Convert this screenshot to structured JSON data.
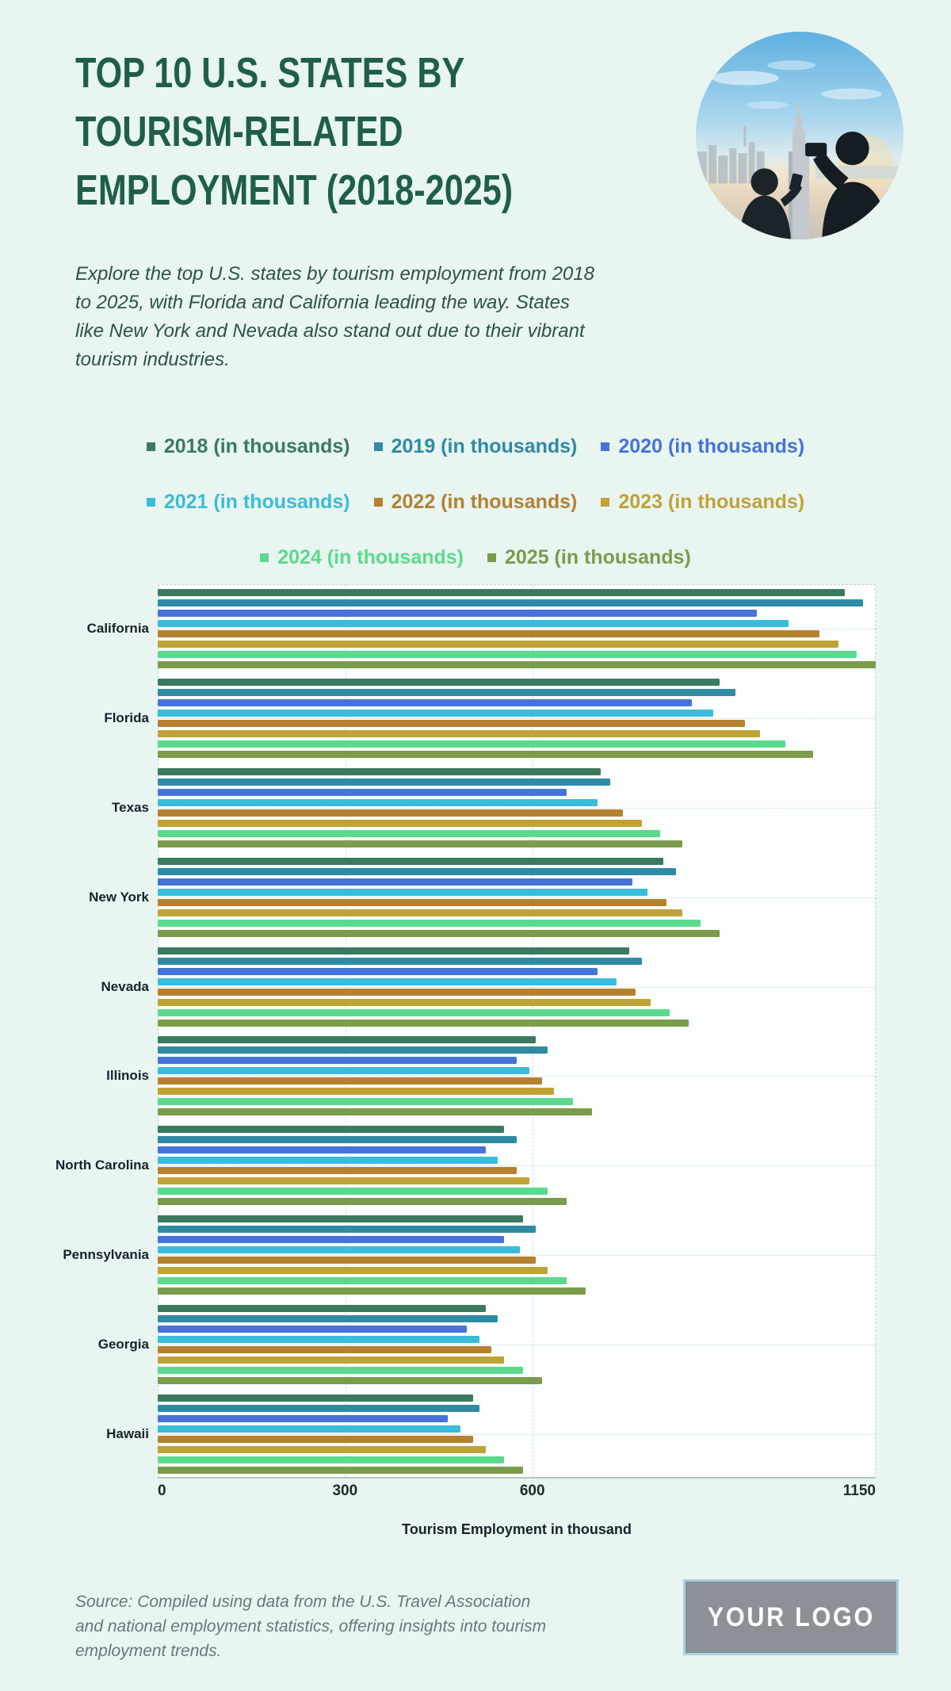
{
  "page": {
    "title_lines": [
      "TOP 10 U.S. STATES BY",
      "TOURISM-RELATED",
      "EMPLOYMENT (2018-2025)"
    ],
    "intro": "Explore the top U.S. states by tourism employment from 2018 to 2025, with Florida and California leading the way. States like New York and Nevada also stand out due to their vibrant tourism industries.",
    "source": "Source: Compiled using data from the U.S. Travel Association and national employment statistics, offering insights into tourism employment trends.",
    "logo_text": "YOUR LOGO"
  },
  "colors": {
    "background": "#e8f5f1",
    "title": "#1f5f47",
    "intro_text": "#2e5247",
    "source_text": "#68787a",
    "logo_bg": "#8b9196",
    "logo_border": "#abd0e1",
    "plot_bg": "#fbfefd",
    "grid": "#ccd8d5",
    "axis_text": "#1d2a28"
  },
  "chart_data": {
    "type": "bar",
    "orientation": "horizontal",
    "title": "",
    "xlabel": "Tourism Employment in thousand",
    "ylabel": "",
    "xlim": [
      0,
      1150
    ],
    "x_ticks": [
      0,
      300,
      600,
      1150
    ],
    "grid": "dashed vertical at 300 and 600, dotted horizontal at each category center",
    "legend_position": "top, three centered rows",
    "legend_rows": [
      [
        0,
        1,
        2
      ],
      [
        3,
        4,
        5
      ],
      [
        6,
        7
      ]
    ],
    "categories": [
      "California",
      "Florida",
      "Texas",
      "New York",
      "Nevada",
      "Illinois",
      "North Carolina",
      "Pennsylvania",
      "Georgia",
      "Hawaii"
    ],
    "series": [
      {
        "name": "2018 (in thousands)",
        "color": "#3b7a5e",
        "values": [
          1100,
          900,
          710,
          810,
          755,
          605,
          555,
          585,
          525,
          505
        ]
      },
      {
        "name": "2019 (in thousands)",
        "color": "#2f8ba3",
        "values": [
          1130,
          925,
          725,
          830,
          775,
          625,
          575,
          605,
          545,
          515
        ]
      },
      {
        "name": "2020 (in thousands)",
        "color": "#4673d8",
        "values": [
          960,
          855,
          655,
          760,
          705,
          575,
          525,
          555,
          495,
          465
        ]
      },
      {
        "name": "2021 (in thousands)",
        "color": "#38bdda",
        "values": [
          1010,
          890,
          705,
          785,
          735,
          595,
          545,
          580,
          515,
          485
        ]
      },
      {
        "name": "2022 (in thousands)",
        "color": "#b5812f",
        "values": [
          1060,
          940,
          745,
          815,
          765,
          615,
          575,
          605,
          535,
          505
        ]
      },
      {
        "name": "2023 (in thousands)",
        "color": "#c0a236",
        "values": [
          1090,
          965,
          775,
          840,
          790,
          635,
          595,
          625,
          555,
          525
        ]
      },
      {
        "name": "2024 (in thousands)",
        "color": "#5bda8d",
        "values": [
          1120,
          1005,
          805,
          870,
          820,
          665,
          625,
          655,
          585,
          555
        ]
      },
      {
        "name": "2025 (in thousands)",
        "color": "#7b9c4a",
        "values": [
          1150,
          1050,
          840,
          900,
          850,
          695,
          655,
          685,
          615,
          585
        ]
      }
    ]
  }
}
